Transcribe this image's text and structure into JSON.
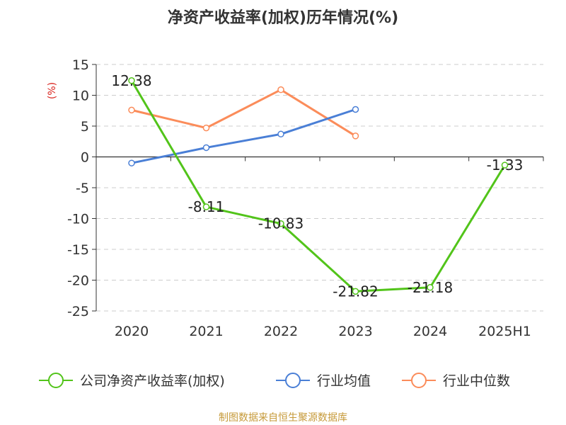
{
  "chart_data": {
    "type": "line",
    "title": "净资产收益率(加权)历年情况(%)",
    "ylabel": "(%)",
    "categories": [
      "2020",
      "2021",
      "2022",
      "2023",
      "2024",
      "2025H1"
    ],
    "ylim": [
      -25,
      15
    ],
    "yticks": [
      15,
      10,
      5,
      0,
      -5,
      -10,
      -15,
      -20,
      -25
    ],
    "grid": true,
    "legend_position": "bottom",
    "series": [
      {
        "name": "公司净资产收益率(加权)",
        "color": "#52c41a",
        "values": [
          12.38,
          -8.11,
          -10.83,
          -21.82,
          -21.18,
          -1.33
        ],
        "labels": [
          "12.38",
          "-8.11",
          "-10.83",
          "-21.82",
          "-21.18",
          "-1.33"
        ]
      },
      {
        "name": "行业均值",
        "color": "#4a7fd6",
        "values": [
          -1.0,
          1.5,
          3.7,
          7.7,
          null,
          null
        ]
      },
      {
        "name": "行业中位数",
        "color": "#fb8c5a",
        "values": [
          7.6,
          4.7,
          10.9,
          3.4,
          null,
          null
        ]
      }
    ]
  },
  "source": "制图数据来自恒生聚源数据库"
}
